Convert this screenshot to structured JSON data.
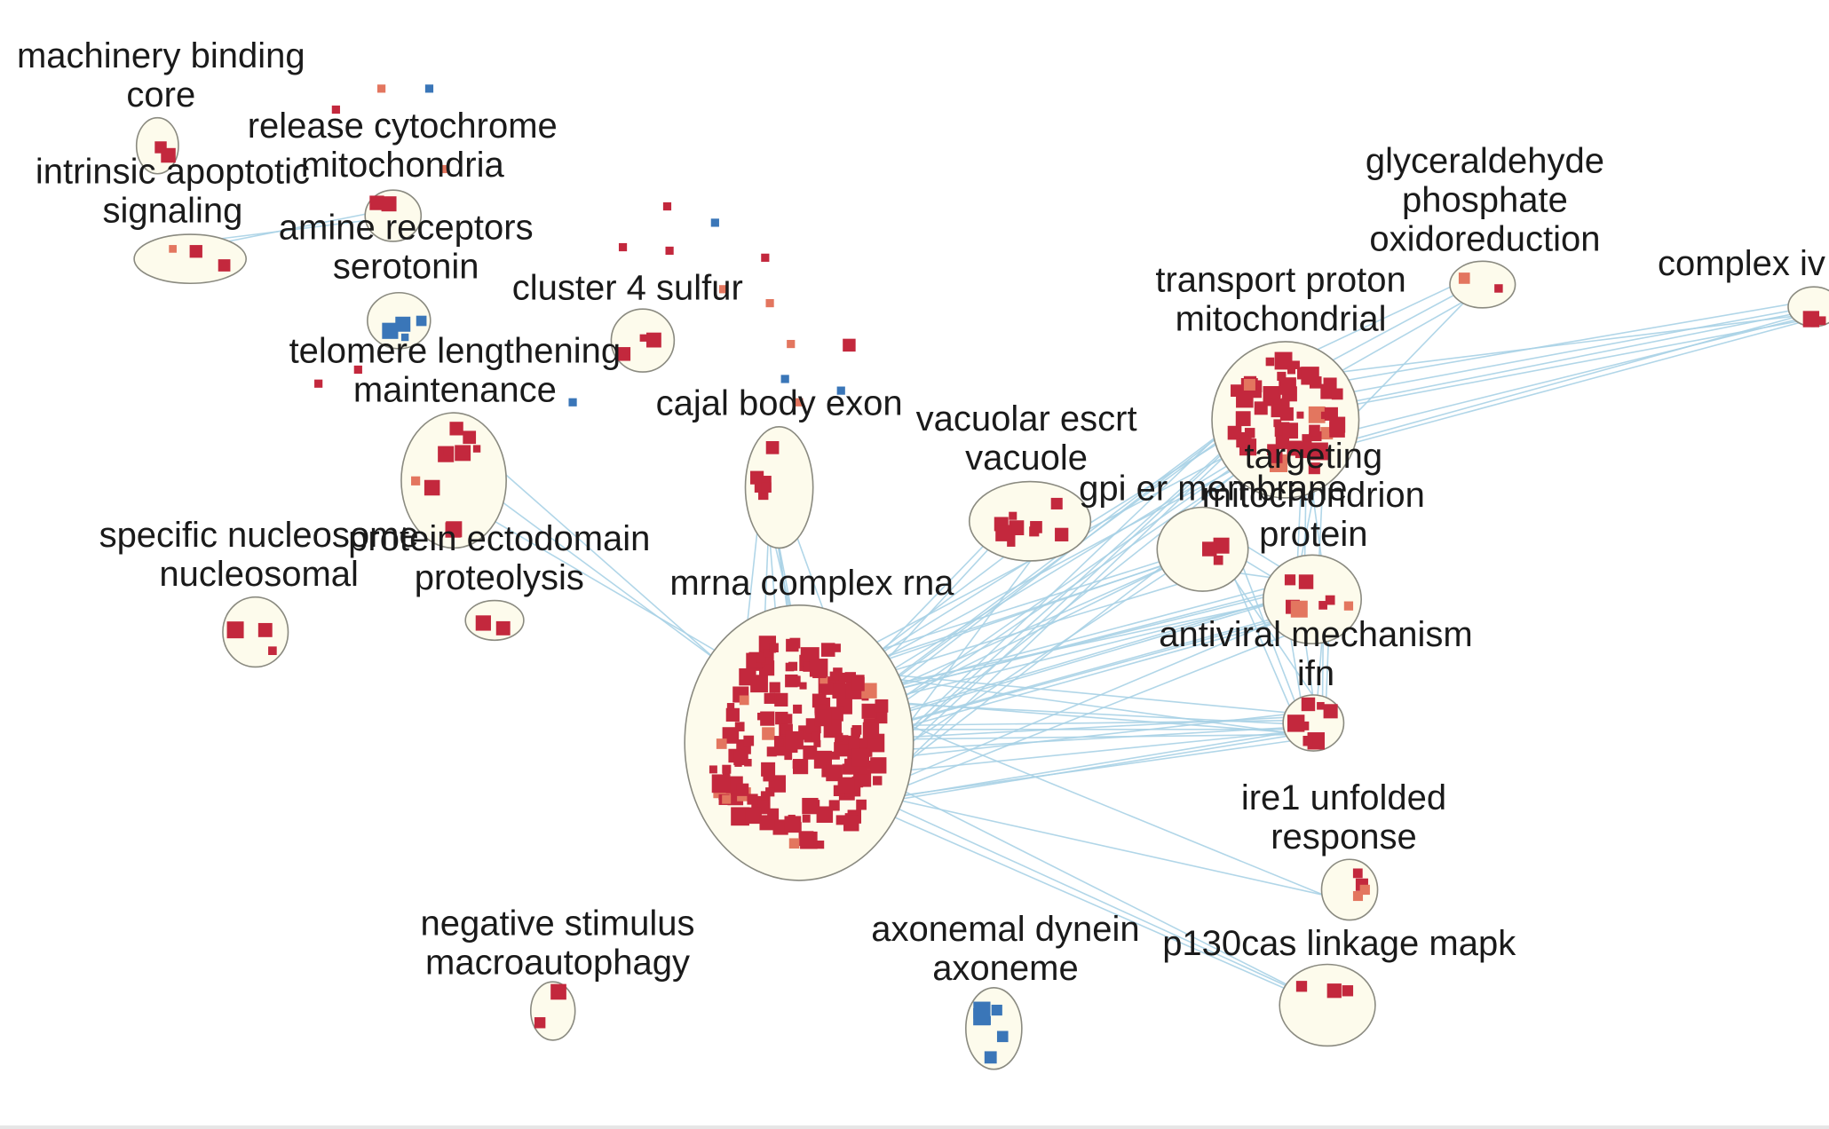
{
  "colors": {
    "background": "#ffffff",
    "cluster_fill": "#fdfbec",
    "cluster_stroke": "#8a8a80",
    "edge": "#a9d2e6",
    "node_red": "#c3283d",
    "node_salmon": "#e3765f",
    "node_blue": "#3a76b8"
  },
  "clusters": [
    {
      "id": "machinery",
      "label_lines": [
        "machinery binding",
        "core"
      ]
    },
    {
      "id": "release",
      "label_lines": [
        "release cytochrome",
        "mitochondria"
      ]
    },
    {
      "id": "intrinsic",
      "label_lines": [
        "intrinsic apoptotic",
        "signaling"
      ]
    },
    {
      "id": "amine",
      "label_lines": [
        "amine receptors",
        "serotonin"
      ]
    },
    {
      "id": "cluster4",
      "label_lines": [
        "cluster 4 sulfur"
      ]
    },
    {
      "id": "telomere",
      "label_lines": [
        "telomere lengthening",
        "maintenance"
      ]
    },
    {
      "id": "cajal",
      "label_lines": [
        "cajal body exon"
      ]
    },
    {
      "id": "vacuolar",
      "label_lines": [
        "vacuolar escrt",
        "vacuole"
      ]
    },
    {
      "id": "gpi",
      "label_lines": [
        "gpi er membrane"
      ]
    },
    {
      "id": "transport",
      "label_lines": [
        "transport proton",
        "mitochondrial"
      ]
    },
    {
      "id": "glyceraldehyde",
      "label_lines": [
        "glyceraldehyde",
        "phosphate",
        "oxidoreduction"
      ]
    },
    {
      "id": "complexiv",
      "label_lines": [
        "complex iv"
      ]
    },
    {
      "id": "targeting",
      "label_lines": [
        "targeting",
        "mitochondrion",
        "protein"
      ]
    },
    {
      "id": "specific",
      "label_lines": [
        "specific nucleosome",
        "nucleosomal"
      ]
    },
    {
      "id": "ectodomain",
      "label_lines": [
        "protein ectodomain",
        "proteolysis"
      ]
    },
    {
      "id": "mrna",
      "label_lines": [
        "mrna complex rna"
      ]
    },
    {
      "id": "antiviral",
      "label_lines": [
        "antiviral mechanism",
        "ifn"
      ]
    },
    {
      "id": "ire1",
      "label_lines": [
        "ire1 unfolded",
        "response"
      ]
    },
    {
      "id": "negative",
      "label_lines": [
        "negative stimulus",
        "macroautophagy"
      ]
    },
    {
      "id": "axonemal",
      "label_lines": [
        "axonemal dynein",
        "axoneme"
      ]
    },
    {
      "id": "p130cas",
      "label_lines": [
        "p130cas linkage mapk"
      ]
    }
  ]
}
